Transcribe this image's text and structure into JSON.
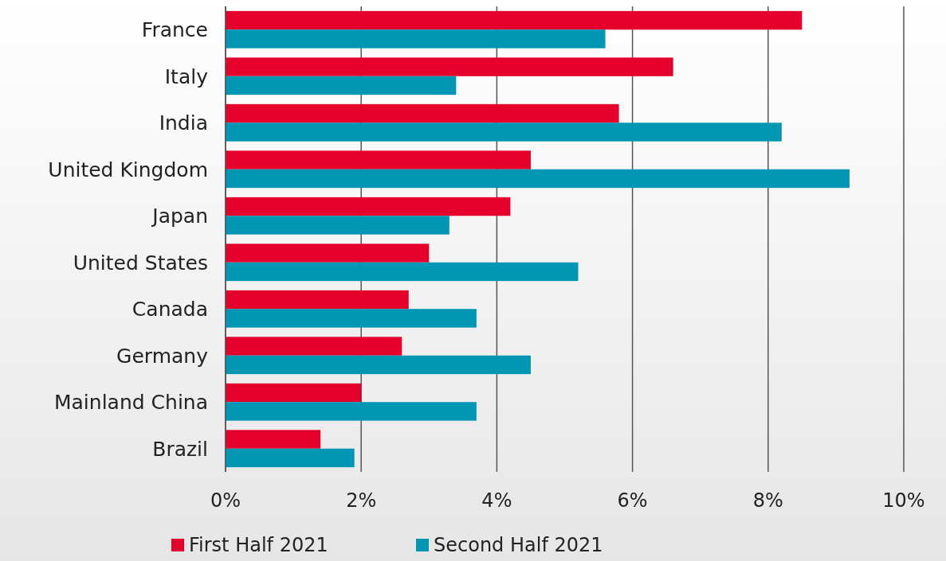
{
  "chart_data": {
    "type": "bar",
    "orientation": "horizontal",
    "categories": [
      "France",
      "Italy",
      "India",
      "United Kingdom",
      "Japan",
      "United States",
      "Canada",
      "Germany",
      "Mainland China",
      "Brazil"
    ],
    "series": [
      {
        "name": "First Half 2021",
        "color": "#e4002b",
        "values": [
          8.5,
          6.6,
          5.8,
          4.5,
          4.2,
          3.0,
          2.7,
          2.6,
          2.0,
          1.4
        ]
      },
      {
        "name": "Second Half 2021",
        "color": "#0096b4",
        "values": [
          5.6,
          3.4,
          8.2,
          9.2,
          3.3,
          5.2,
          3.7,
          4.5,
          3.7,
          1.9
        ]
      }
    ],
    "xlim": [
      0,
      10
    ],
    "xticks": [
      {
        "value": 0,
        "label": "0%"
      },
      {
        "value": 2,
        "label": "2%"
      },
      {
        "value": 4,
        "label": "4%"
      },
      {
        "value": 6,
        "label": "6%"
      },
      {
        "value": 8,
        "label": "8%"
      },
      {
        "value": 10,
        "label": "10%"
      }
    ],
    "grid": "x",
    "legend": "bottom"
  }
}
